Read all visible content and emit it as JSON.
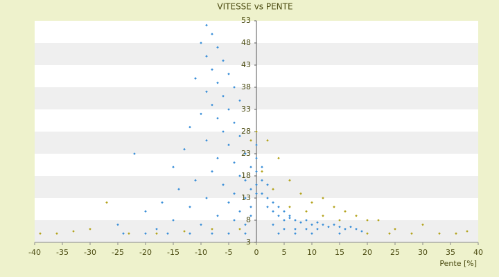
{
  "chart_data": {
    "type": "scatter",
    "title": "VITESSE vs PENTE",
    "x_label": "Pente [%]",
    "xlim": [
      -40,
      40
    ],
    "ylim": [
      3,
      53
    ],
    "xticks": [
      -40,
      -35,
      -30,
      -25,
      -20,
      -15,
      -10,
      -5,
      0,
      5,
      10,
      15,
      20,
      25,
      30,
      35,
      40
    ],
    "yticks": [
      3,
      8,
      13,
      18,
      23,
      28,
      33,
      38,
      43,
      48,
      53
    ],
    "grid": true,
    "series": [
      {
        "color": "#3a8fd8",
        "x": [
          -9,
          -8,
          -10,
          -7,
          -9,
          -6,
          -8,
          -5,
          -11,
          -7,
          -4,
          -9,
          -6,
          -3,
          -8,
          -5,
          -10,
          -7,
          -4,
          -12,
          -6,
          -3,
          -9,
          -5,
          -13,
          -2,
          -7,
          -4,
          -15,
          -1,
          -8,
          -3,
          -11,
          -2,
          -6,
          -1,
          -14,
          -4,
          0,
          -9,
          -2,
          -17,
          -5,
          -1,
          -12,
          -3,
          -20,
          -7,
          -1,
          -15,
          -4,
          -25,
          -10,
          -2,
          -22,
          -18,
          0,
          0,
          0,
          1,
          1,
          0,
          2,
          1,
          2,
          3,
          2,
          4,
          3,
          5,
          4,
          6,
          5,
          7,
          6,
          8,
          9,
          10,
          11,
          12,
          13,
          14,
          15,
          16,
          17,
          18,
          19,
          3,
          5,
          7,
          9,
          11,
          -2,
          -5,
          -8,
          -12,
          -16,
          -20,
          -24,
          4,
          7,
          10,
          15
        ],
        "values": [
          52,
          50,
          48,
          47,
          45,
          44,
          42,
          41,
          40,
          39,
          38,
          37,
          36,
          35,
          34,
          33,
          32,
          31,
          30,
          29,
          28,
          27,
          26,
          25,
          24,
          23,
          22,
          21,
          20,
          20,
          19,
          18,
          17,
          17,
          16,
          15,
          15,
          14,
          14,
          13,
          13,
          12,
          12,
          11,
          11,
          10,
          10,
          9,
          9,
          8,
          8,
          7,
          7,
          7,
          23,
          6,
          25,
          22,
          19,
          20,
          17,
          16,
          16,
          14,
          13,
          12,
          11,
          11,
          10,
          10,
          9,
          9,
          8,
          8,
          8.5,
          7.5,
          8,
          7,
          7.5,
          7,
          6.5,
          7,
          6.5,
          6,
          6.5,
          6,
          5.5,
          7,
          6,
          6,
          6,
          6,
          5,
          5,
          5,
          5,
          5,
          5,
          5,
          5,
          5,
          5,
          5
        ]
      },
      {
        "color": "#b3a31c",
        "x": [
          -39,
          -36,
          -33,
          -30,
          -27,
          -23,
          -18,
          -13,
          -8,
          -3,
          0,
          2,
          4,
          6,
          8,
          10,
          12,
          14,
          16,
          18,
          20,
          22,
          25,
          28,
          30,
          33,
          36,
          38,
          6,
          9,
          12,
          15,
          3,
          1,
          -1,
          20,
          24
        ],
        "values": [
          5,
          5,
          5.5,
          6,
          12,
          5,
          5,
          5.5,
          6,
          6,
          28,
          26,
          22,
          17,
          14,
          12,
          13,
          11,
          10,
          9,
          8,
          8,
          6,
          5,
          7,
          5,
          5,
          5.5,
          11,
          10,
          9,
          8,
          15,
          19,
          26,
          5,
          5
        ]
      }
    ]
  }
}
